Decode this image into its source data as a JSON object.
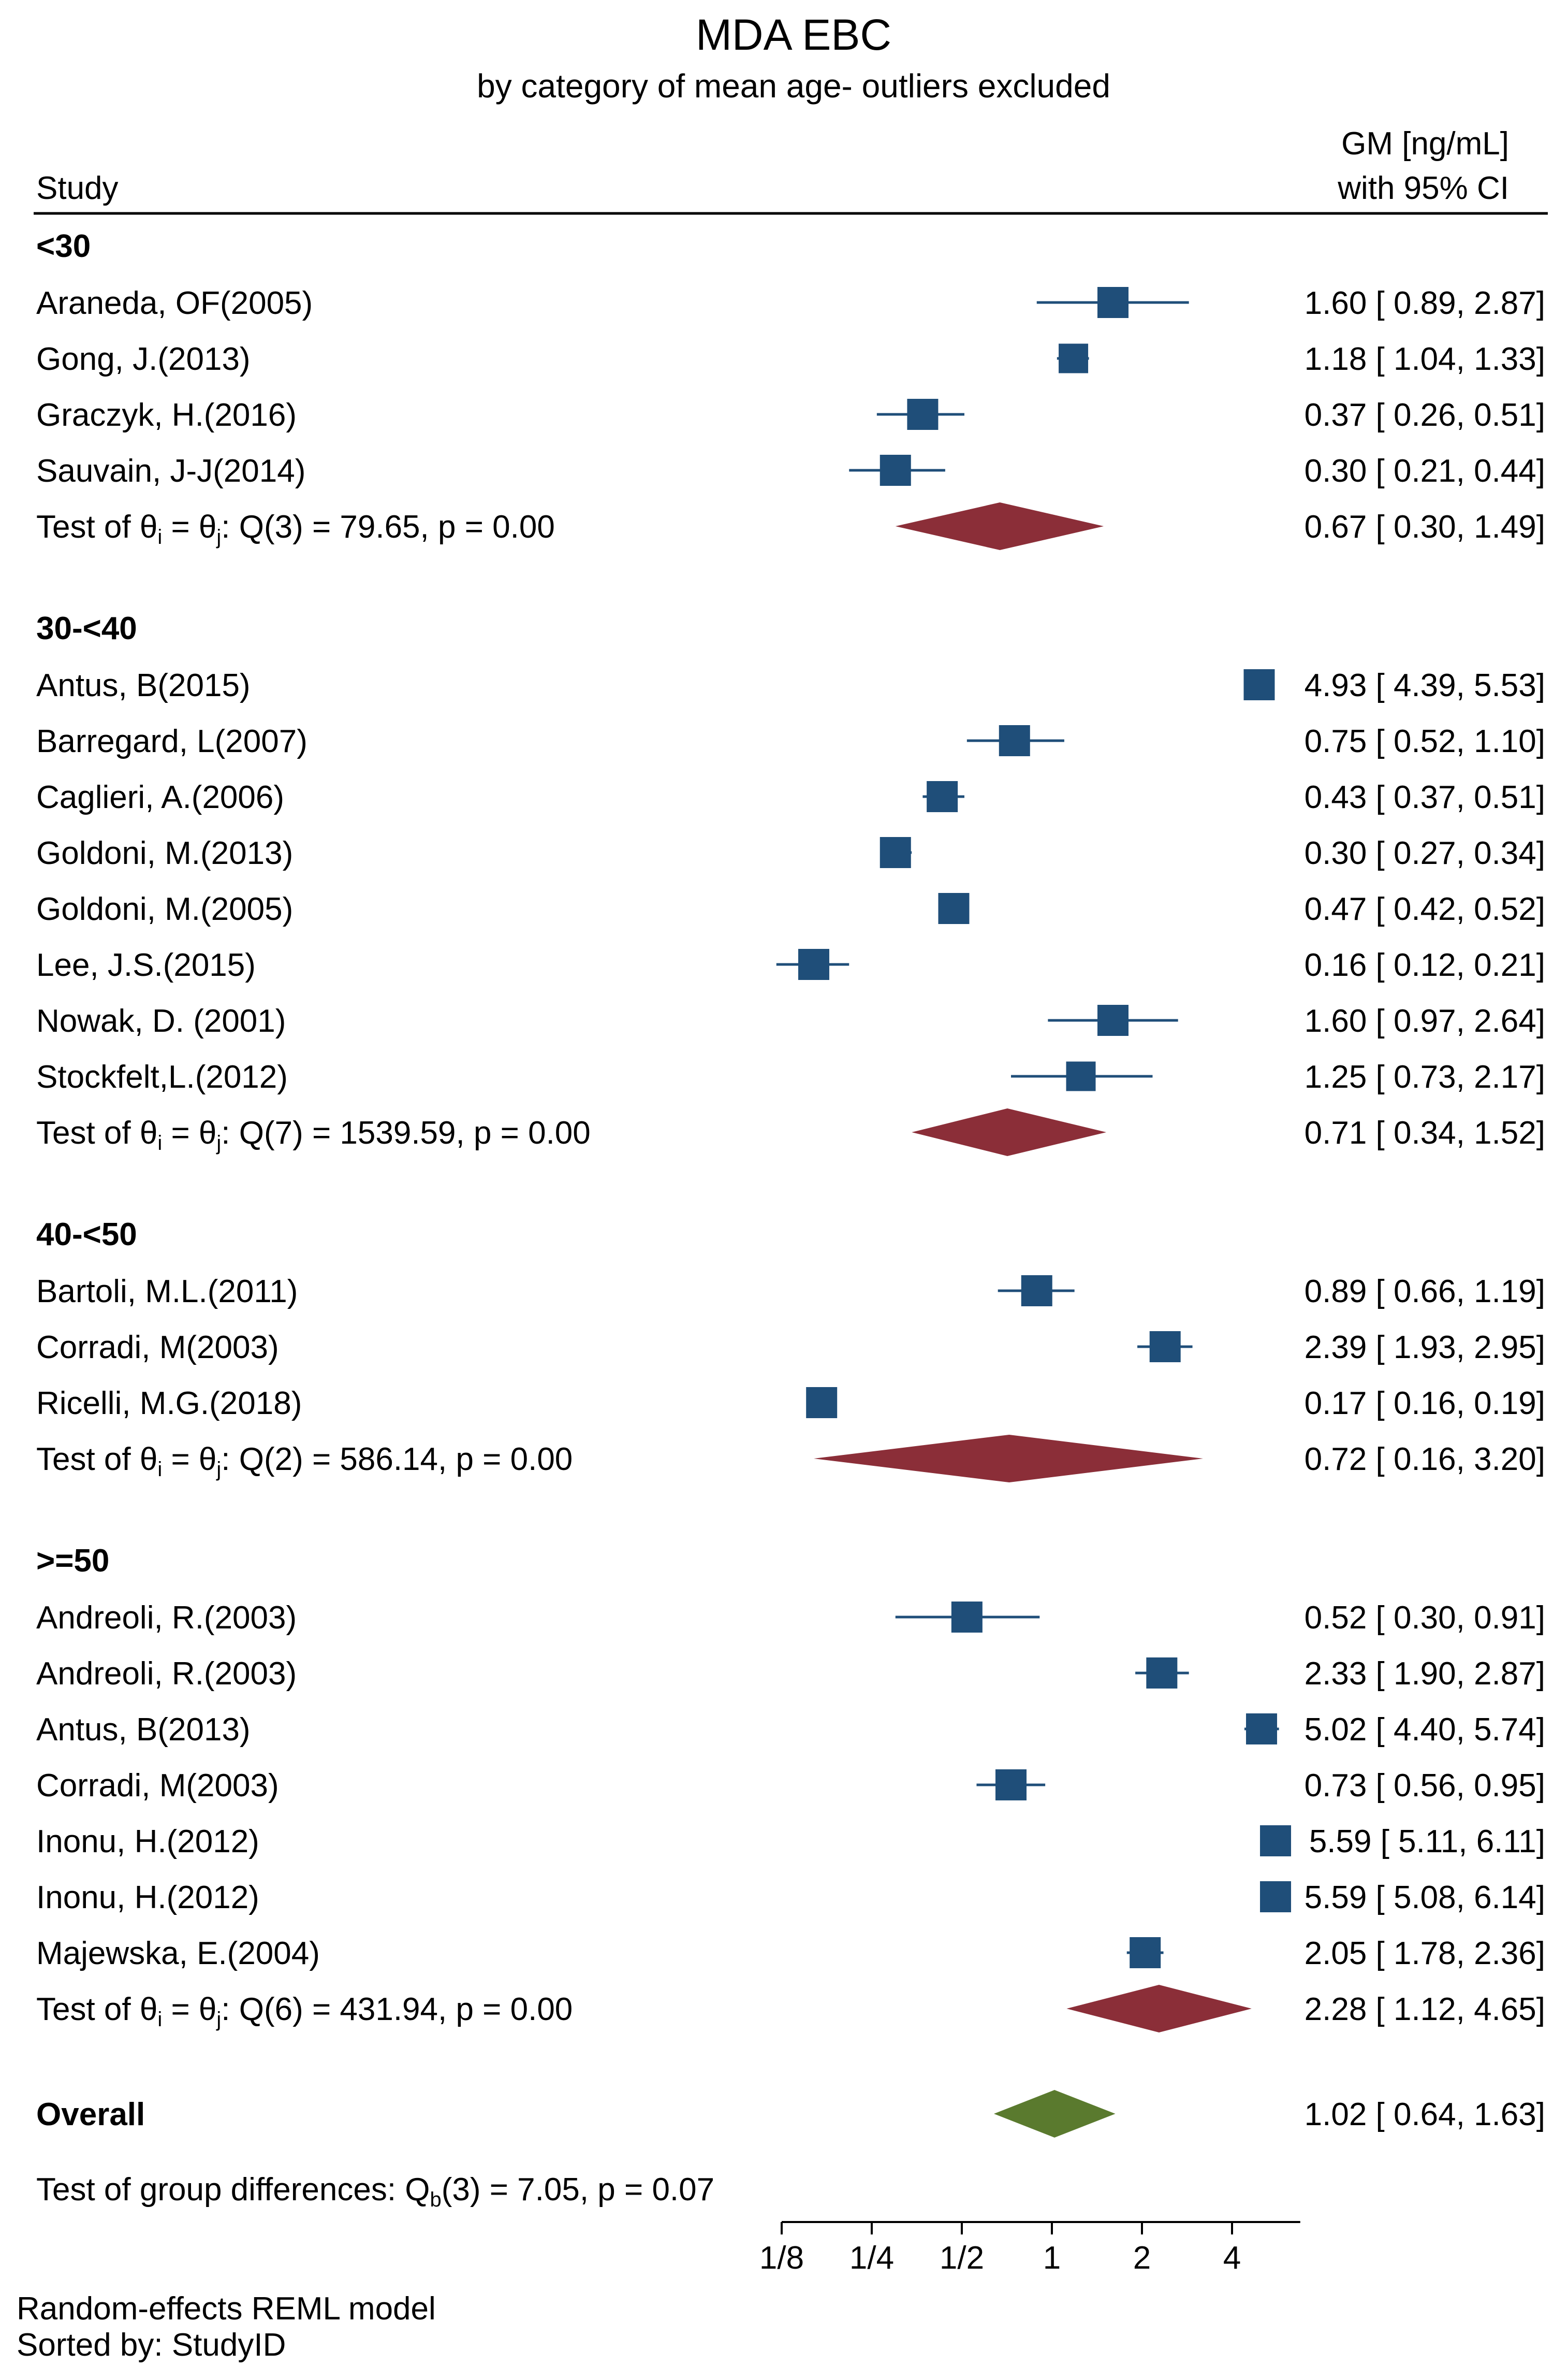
{
  "colors": {
    "square": "#1f4e79",
    "diamond": "#8b2e38",
    "overall": "#5a7a2e",
    "title": "#1f3b6b"
  },
  "chart_data": {
    "type": "forest",
    "title": "MDA EBC",
    "subtitle": "by category of mean age- outliers excluded",
    "col_study": "Study",
    "col_effect_1": "GM [ng/mL]",
    "col_effect_2": "with 95% CI",
    "x_scale": "log2",
    "xlim": [
      0.125,
      6.0
    ],
    "x_ticks": [
      {
        "value": 0.125,
        "label": "1/8"
      },
      {
        "value": 0.25,
        "label": "1/4"
      },
      {
        "value": 0.5,
        "label": "1/2"
      },
      {
        "value": 1,
        "label": "1"
      },
      {
        "value": 2,
        "label": "2"
      },
      {
        "value": 4,
        "label": "4"
      }
    ],
    "groups": [
      {
        "name": "<30",
        "studies": [
          {
            "study": "Araneda, OF(2005)",
            "est": 1.6,
            "lo": 0.89,
            "hi": 2.87,
            "text": "1.60 [ 0.89,  2.87]",
            "w": 1.0
          },
          {
            "study": "Gong, J.(2013)",
            "est": 1.18,
            "lo": 1.04,
            "hi": 1.33,
            "text": "1.18 [ 1.04,  1.33]",
            "w": 0.95
          },
          {
            "study": "Graczyk, H.(2016)",
            "est": 0.37,
            "lo": 0.26,
            "hi": 0.51,
            "text": "0.37 [ 0.26,  0.51]",
            "w": 1.0
          },
          {
            "study": "Sauvain, J-J(2014)",
            "est": 0.3,
            "lo": 0.21,
            "hi": 0.44,
            "text": "0.30 [ 0.21,  0.44]",
            "w": 1.0
          }
        ],
        "het_label": "Test of θ",
        "het_rest": ": Q(3) = 79.65, p = 0.00",
        "pooled": {
          "est": 0.67,
          "lo": 0.3,
          "hi": 1.49,
          "text": "0.67 [ 0.30,  1.49]"
        }
      },
      {
        "name": "30-<40",
        "studies": [
          {
            "study": "Antus, B(2015)",
            "est": 4.93,
            "lo": 4.39,
            "hi": 5.53,
            "text": "4.93 [ 4.39,  5.53]",
            "w": 1.0
          },
          {
            "study": "Barregard, L(2007)",
            "est": 0.75,
            "lo": 0.52,
            "hi": 1.1,
            "text": "0.75 [ 0.52,  1.10]",
            "w": 1.0
          },
          {
            "study": "Caglieri, A.(2006)",
            "est": 0.43,
            "lo": 0.37,
            "hi": 0.51,
            "text": "0.43 [ 0.37,  0.51]",
            "w": 1.0
          },
          {
            "study": "Goldoni, M.(2013)",
            "est": 0.3,
            "lo": 0.27,
            "hi": 0.34,
            "text": "0.30 [ 0.27,  0.34]",
            "w": 1.0
          },
          {
            "study": "Goldoni, M.(2005)",
            "est": 0.47,
            "lo": 0.42,
            "hi": 0.52,
            "text": "0.47 [ 0.42,  0.52]",
            "w": 1.0
          },
          {
            "study": "Lee, J.S.(2015)",
            "est": 0.16,
            "lo": 0.12,
            "hi": 0.21,
            "text": "0.16 [ 0.12,  0.21]",
            "w": 1.0
          },
          {
            "study": "Nowak, D. (2001)",
            "est": 1.6,
            "lo": 0.97,
            "hi": 2.64,
            "text": "1.60 [ 0.97,  2.64]",
            "w": 1.0
          },
          {
            "study": "Stockfelt,L.(2012)",
            "est": 1.25,
            "lo": 0.73,
            "hi": 2.17,
            "text": "1.25 [ 0.73,  2.17]",
            "w": 0.95
          }
        ],
        "het_label": "Test of θ",
        "het_rest": ": Q(7) = 1539.59, p = 0.00",
        "pooled": {
          "est": 0.71,
          "lo": 0.34,
          "hi": 1.52,
          "text": "0.71 [ 0.34,  1.52]"
        }
      },
      {
        "name": "40-<50",
        "studies": [
          {
            "study": "Bartoli, M.L.(2011)",
            "est": 0.89,
            "lo": 0.66,
            "hi": 1.19,
            "text": "0.89 [ 0.66,  1.19]",
            "w": 1.0
          },
          {
            "study": "Corradi, M(2003)",
            "est": 2.39,
            "lo": 1.93,
            "hi": 2.95,
            "text": "2.39 [ 1.93,  2.95]",
            "w": 1.0
          },
          {
            "study": "Ricelli, M.G.(2018)",
            "est": 0.17,
            "lo": 0.16,
            "hi": 0.19,
            "text": "0.17 [ 0.16,  0.19]",
            "w": 1.0
          }
        ],
        "het_label": "Test of θ",
        "het_rest": ": Q(2) = 586.14, p = 0.00",
        "pooled": {
          "est": 0.72,
          "lo": 0.16,
          "hi": 3.2,
          "text": "0.72 [ 0.16,  3.20]"
        }
      },
      {
        "name": ">=50",
        "studies": [
          {
            "study": "Andreoli, R.(2003)",
            "est": 0.52,
            "lo": 0.3,
            "hi": 0.91,
            "text": "0.52 [ 0.30,  0.91]",
            "w": 1.0
          },
          {
            "study": "Andreoli, R.(2003)",
            "est": 2.33,
            "lo": 1.9,
            "hi": 2.87,
            "text": "2.33 [ 1.90,  2.87]",
            "w": 1.0
          },
          {
            "study": "Antus, B(2013)",
            "est": 5.02,
            "lo": 4.4,
            "hi": 5.74,
            "text": "5.02 [ 4.40,  5.74]",
            "w": 1.0
          },
          {
            "study": "Corradi, M(2003)",
            "est": 0.73,
            "lo": 0.56,
            "hi": 0.95,
            "text": "0.73 [ 0.56,  0.95]",
            "w": 1.0
          },
          {
            "study": "Inonu, H.(2012)",
            "est": 5.59,
            "lo": 5.11,
            "hi": 6.11,
            "text": "5.59 [ 5.11,  6.11]",
            "w": 1.0
          },
          {
            "study": "Inonu, H.(2012)",
            "est": 5.59,
            "lo": 5.08,
            "hi": 6.14,
            "text": "5.59 [ 5.08,  6.14]",
            "w": 1.0
          },
          {
            "study": "Majewska, E.(2004)",
            "est": 2.05,
            "lo": 1.78,
            "hi": 2.36,
            "text": "2.05 [ 1.78,  2.36]",
            "w": 1.0
          }
        ],
        "het_label": "Test of θ",
        "het_rest": ": Q(6) = 431.94, p = 0.00",
        "pooled": {
          "est": 2.28,
          "lo": 1.12,
          "hi": 4.65,
          "text": "2.28 [ 1.12,  4.65]"
        }
      }
    ],
    "overall": {
      "label": "Overall",
      "est": 1.02,
      "lo": 0.64,
      "hi": 1.63,
      "text": "1.02 [ 0.64,  1.63]"
    },
    "group_diff_label": "Test of group differences: Q",
    "group_diff_rest": "(3) = 7.05, p = 0.07",
    "notes": [
      "Random-effects REML model",
      "Sorted by: StudyID"
    ]
  }
}
